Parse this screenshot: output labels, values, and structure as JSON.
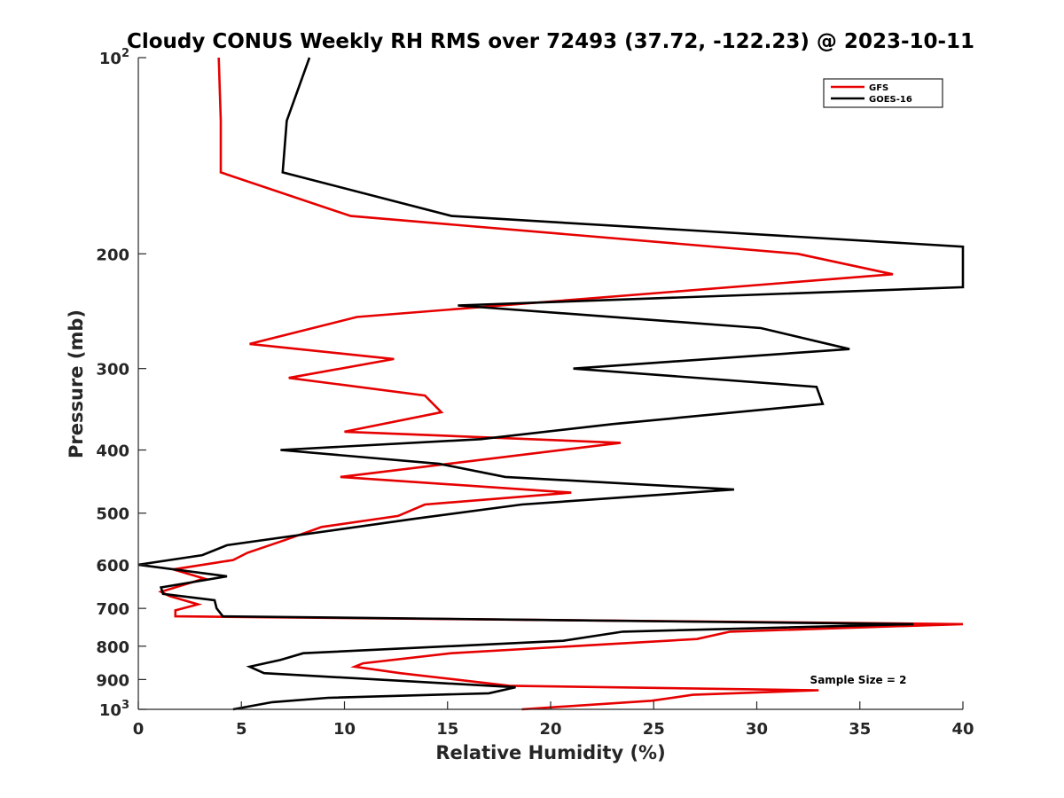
{
  "chart_data": {
    "type": "line",
    "title": "Cloudy CONUS Weekly RH RMS over 72493 (37.72, -122.23) @ 2023-10-11",
    "xlabel": "Relative Humidity (%)",
    "ylabel": "Pressure (mb)",
    "xlim": [
      0,
      40
    ],
    "ylim": [
      100,
      1000
    ],
    "y_scale": "log",
    "y_reversed": true,
    "grid": false,
    "legend_position": "top-right",
    "x_ticks": [
      0,
      5,
      10,
      15,
      20,
      25,
      30,
      35,
      40
    ],
    "y_ticks": [
      {
        "value": 100,
        "label": "10",
        "exponent": "2"
      },
      {
        "value": 200,
        "label": "200"
      },
      {
        "value": 300,
        "label": "300"
      },
      {
        "value": 400,
        "label": "400"
      },
      {
        "value": 500,
        "label": "500"
      },
      {
        "value": 600,
        "label": "600"
      },
      {
        "value": 700,
        "label": "700"
      },
      {
        "value": 800,
        "label": "800"
      },
      {
        "value": 900,
        "label": "900"
      },
      {
        "value": 1000,
        "label": "10",
        "exponent": "3"
      }
    ],
    "annotation": "Sample Size = 2",
    "series": [
      {
        "name": "GFS",
        "color": "#e60000",
        "points": [
          [
            3.9,
            100
          ],
          [
            4.0,
            125
          ],
          [
            4.0,
            150
          ],
          [
            10.3,
            175
          ],
          [
            32.0,
            200
          ],
          [
            36.6,
            215
          ],
          [
            10.6,
            250
          ],
          [
            5.4,
            275
          ],
          [
            12.4,
            290
          ],
          [
            7.3,
            310
          ],
          [
            13.9,
            330
          ],
          [
            14.7,
            350
          ],
          [
            10.0,
            375
          ],
          [
            23.4,
            390
          ],
          [
            9.8,
            440
          ],
          [
            21.0,
            465
          ],
          [
            13.9,
            485
          ],
          [
            12.6,
            505
          ],
          [
            8.9,
            525
          ],
          [
            7.1,
            550
          ],
          [
            5.3,
            575
          ],
          [
            4.6,
            590
          ],
          [
            1.7,
            610
          ],
          [
            3.2,
            630
          ],
          [
            1.1,
            660
          ],
          [
            1.5,
            670
          ],
          [
            2.9,
            690
          ],
          [
            1.8,
            705
          ],
          [
            1.8,
            720
          ],
          [
            40.0,
            740
          ],
          [
            28.7,
            760
          ],
          [
            27.1,
            780
          ],
          [
            15.2,
            820
          ],
          [
            10.9,
            850
          ],
          [
            10.5,
            860
          ],
          [
            12.7,
            880
          ],
          [
            18.0,
            920
          ],
          [
            33.0,
            935
          ],
          [
            26.9,
            950
          ],
          [
            24.9,
            970
          ],
          [
            18.6,
            1000
          ]
        ]
      },
      {
        "name": "GOES-16",
        "color": "#000000",
        "points": [
          [
            8.3,
            100
          ],
          [
            7.2,
            125
          ],
          [
            7.0,
            150
          ],
          [
            15.2,
            175
          ],
          [
            40.0,
            195
          ],
          [
            40.0,
            225
          ],
          [
            15.5,
            240
          ],
          [
            30.2,
            260
          ],
          [
            34.5,
            280
          ],
          [
            21.1,
            300
          ],
          [
            32.9,
            320
          ],
          [
            33.2,
            340
          ],
          [
            23.0,
            365
          ],
          [
            16.6,
            385
          ],
          [
            6.9,
            400
          ],
          [
            14.6,
            420
          ],
          [
            17.8,
            440
          ],
          [
            28.9,
            460
          ],
          [
            18.6,
            485
          ],
          [
            13.4,
            510
          ],
          [
            4.3,
            560
          ],
          [
            3.1,
            580
          ],
          [
            0.0,
            600
          ],
          [
            4.3,
            625
          ],
          [
            1.1,
            650
          ],
          [
            1.2,
            665
          ],
          [
            3.7,
            680
          ],
          [
            3.8,
            700
          ],
          [
            4.1,
            720
          ],
          [
            37.6,
            740
          ],
          [
            23.5,
            760
          ],
          [
            20.6,
            785
          ],
          [
            8.0,
            820
          ],
          [
            6.9,
            840
          ],
          [
            5.4,
            860
          ],
          [
            6.1,
            880
          ],
          [
            18.3,
            925
          ],
          [
            17.0,
            945
          ],
          [
            9.2,
            960
          ],
          [
            6.5,
            975
          ],
          [
            4.6,
            1000
          ]
        ]
      }
    ]
  }
}
